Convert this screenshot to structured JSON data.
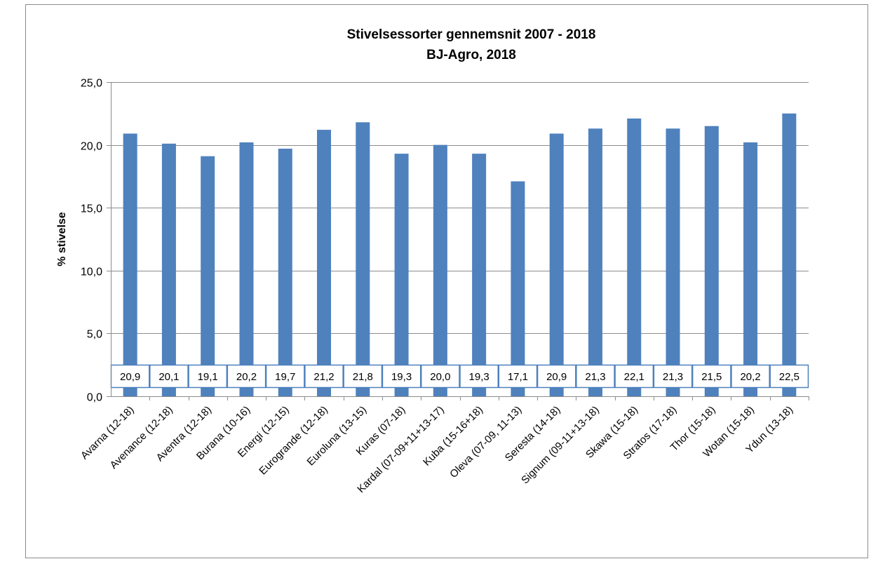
{
  "chart_data": {
    "type": "bar",
    "title": "Stivelsessorter gennemsnit 2007 - 2018",
    "subtitle": "BJ-Agro, 2018",
    "xlabel": "",
    "ylabel": "% stivelse",
    "ylim": [
      0,
      25
    ],
    "yticks": [
      "0,0",
      "5,0",
      "10,0",
      "15,0",
      "20,0",
      "25,0"
    ],
    "grid": true,
    "bar_color": "#4F81BD",
    "label_box_color": "#4F81BD",
    "categories": [
      "Avarna (12-18)",
      "Avenance (12-18)",
      "Aventra (12-18)",
      "Burana (10-16)",
      "Energi (12-15)",
      "Eurogrande (12-18)",
      "Euroluna (13-15)",
      "Kuras (07-18)",
      "Kardal (07-09+11+13-17)",
      "Kuba (15-16+18)",
      "Oleva (07-09, 11-13)",
      "Seresta (14-18)",
      "Signum (09-11+13-18)",
      "Skawa (15-18)",
      "Stratos (17-18)",
      "Thor (15-18)",
      "Wotan (15-18)",
      "Ydun (13-18)"
    ],
    "values": [
      20.9,
      20.1,
      19.1,
      20.2,
      19.7,
      21.2,
      21.8,
      19.3,
      20.0,
      19.3,
      17.1,
      20.9,
      21.3,
      22.1,
      21.3,
      21.5,
      20.2,
      22.5
    ],
    "value_labels": [
      "20,9",
      "20,1",
      "19,1",
      "20,2",
      "19,7",
      "21,2",
      "21,8",
      "19,3",
      "20,0",
      "19,3",
      "17,1",
      "20,9",
      "21,3",
      "22,1",
      "21,3",
      "21,5",
      "20,2",
      "22,5"
    ]
  }
}
